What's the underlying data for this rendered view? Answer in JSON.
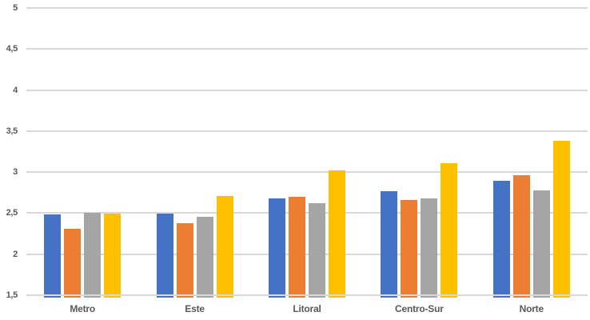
{
  "chart_data": {
    "type": "bar",
    "title": "",
    "xlabel": "",
    "ylabel": "",
    "categories": [
      "Metro",
      "Este",
      "Litoral",
      "Centro-Sur",
      "Norte"
    ],
    "series": [
      {
        "id": "blue",
        "color": "#4472C4",
        "values": [
          2.48,
          2.49,
          2.68,
          2.77,
          2.89
        ]
      },
      {
        "id": "orange",
        "color": "#ED7D31",
        "values": [
          2.31,
          2.38,
          2.7,
          2.66,
          2.96
        ]
      },
      {
        "id": "gray",
        "color": "#A5A5A5",
        "values": [
          2.5,
          2.46,
          2.62,
          2.68,
          2.78
        ]
      },
      {
        "id": "yellow",
        "color": "#FFC000",
        "values": [
          2.49,
          2.71,
          3.02,
          3.11,
          3.38
        ]
      }
    ],
    "ylim": [
      1.5,
      5
    ],
    "y_ticks": [
      1.5,
      2,
      2.5,
      3,
      3.5,
      4,
      4.5,
      5
    ],
    "y_tick_labels": [
      "1,5",
      "2",
      "2,5",
      "3",
      "3,5",
      "4",
      "4,5",
      "5"
    ],
    "decimal_separator": ",",
    "grid": "horizontal",
    "legend_position": "none"
  },
  "styles": {
    "background": "#FFFFFF",
    "grid_color": "#D9D9D9",
    "axis_label_color": "#595959"
  }
}
